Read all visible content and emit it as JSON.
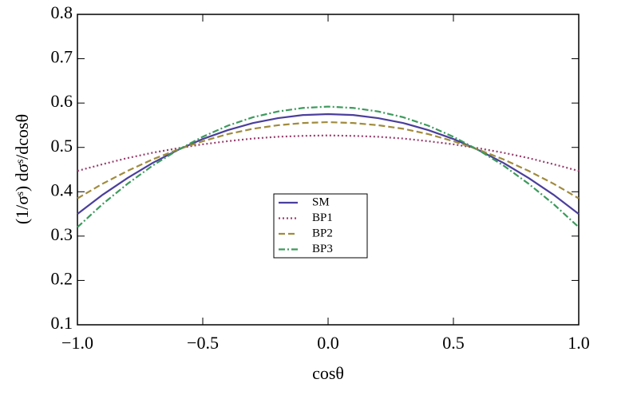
{
  "chart_data": {
    "type": "line",
    "x_label": "cosθ",
    "y_label": "(1/σˢ) dσˢ/dcosθ",
    "x": [
      -1,
      -0.9,
      -0.8,
      -0.7,
      -0.6,
      -0.5,
      -0.4,
      -0.3,
      -0.2,
      -0.1,
      0,
      0.1,
      0.2,
      0.3,
      0.4,
      0.5,
      0.6,
      0.7,
      0.8,
      0.9,
      1
    ],
    "series": [
      {
        "name": "SM",
        "color": "#4a3f9c",
        "dash": "solid",
        "values": [
          0.35,
          0.393,
          0.431,
          0.465,
          0.494,
          0.519,
          0.539,
          0.555,
          0.566,
          0.573,
          0.575,
          0.573,
          0.566,
          0.555,
          0.539,
          0.519,
          0.494,
          0.465,
          0.431,
          0.393,
          0.35
        ]
      },
      {
        "name": "BP1",
        "color": "#973d6c",
        "dash": "dotted",
        "values": [
          0.447,
          0.462,
          0.476,
          0.488,
          0.498,
          0.507,
          0.514,
          0.52,
          0.524,
          0.526,
          0.527,
          0.526,
          0.524,
          0.52,
          0.514,
          0.507,
          0.498,
          0.488,
          0.476,
          0.462,
          0.447
        ]
      },
      {
        "name": "BP2",
        "color": "#a08b3e",
        "dash": "dashed",
        "values": [
          0.385,
          0.418,
          0.447,
          0.473,
          0.495,
          0.514,
          0.53,
          0.542,
          0.55,
          0.555,
          0.557,
          0.555,
          0.55,
          0.542,
          0.53,
          0.514,
          0.495,
          0.473,
          0.447,
          0.418,
          0.385
        ]
      },
      {
        "name": "BP3",
        "color": "#3c9a5c",
        "dash": "dashdot",
        "values": [
          0.32,
          0.372,
          0.418,
          0.459,
          0.494,
          0.524,
          0.549,
          0.568,
          0.581,
          0.589,
          0.592,
          0.589,
          0.581,
          0.568,
          0.549,
          0.524,
          0.494,
          0.459,
          0.418,
          0.372,
          0.32
        ]
      }
    ],
    "xlim": [
      -1,
      1
    ],
    "xticks": [
      {
        "value": -1,
        "label": "−1.0"
      },
      {
        "value": -0.5,
        "label": "−0.5"
      },
      {
        "value": 0,
        "label": "0.0"
      },
      0.5,
      {
        "value": 1,
        "label": "1.0"
      }
    ],
    "ylim": [
      0.1,
      0.8
    ],
    "yticks": [
      0.1,
      0.2,
      0.3,
      0.4,
      0.5,
      0.6,
      0.7,
      0.8
    ],
    "grid": false,
    "legend": "center"
  }
}
